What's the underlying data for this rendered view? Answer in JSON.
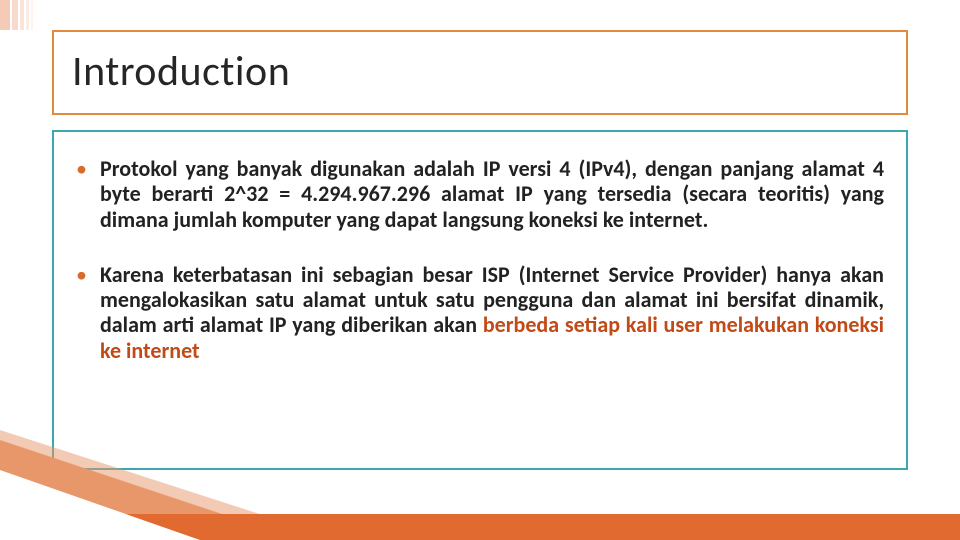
{
  "colors": {
    "title_border": "#e38b3d",
    "title_text": "#262626",
    "content_border": "#3ea6b1",
    "body_text": "#222222",
    "highlight": "#c24a16",
    "bottom_bar": "#e06a2f",
    "bottom_diag": "#e8976a",
    "bullet_color": "#d96b2b"
  },
  "title": "Introduction",
  "bullets": [
    {
      "pre": "Protokol yang banyak digunakan adalah IP versi 4 (IPv4), dengan panjang alamat 4 byte berarti 2^32 = ",
      "bold_num": "4.294.967.296",
      "post": " alamat IP yang tersedia (secara teoritis) yang dimana jumlah komputer yang dapat langsung koneksi ke internet."
    },
    {
      "pre": "Karena keterbatasan ini sebagian besar ISP (Internet Service Provider) hanya akan mengalokasikan satu alamat untuk satu pengguna dan alamat ini bersifat dinamik, dalam arti alamat IP yang diberikan akan ",
      "highlight": "berbeda setiap kali user melakukan koneksi ke internet",
      "post": ""
    }
  ]
}
